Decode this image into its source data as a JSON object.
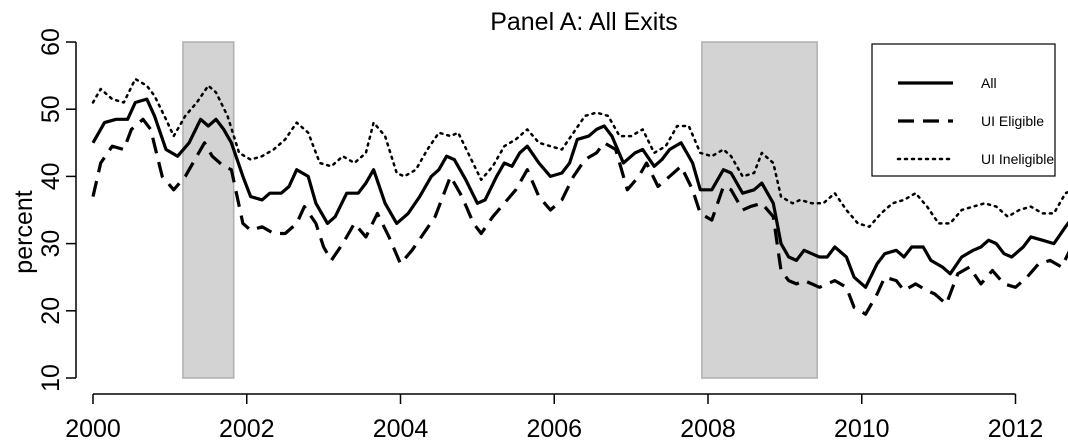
{
  "chart_data": {
    "type": "line",
    "title": "Panel A:  All Exits",
    "xlabel": "",
    "ylabel": "percent",
    "xlim": [
      2000,
      2012.85
    ],
    "ylim": [
      10,
      60
    ],
    "x_ticks": [
      2000,
      2002,
      2004,
      2006,
      2008,
      2010,
      2012
    ],
    "y_ticks": [
      10,
      20,
      30,
      40,
      50,
      60
    ],
    "grid": false,
    "legend_position": "top-right",
    "recession_bands": [
      {
        "start": 2001.17,
        "end": 2001.83
      },
      {
        "start": 2007.92,
        "end": 2009.42
      }
    ],
    "series": [
      {
        "name": "All",
        "style": "solid",
        "color": "#000000",
        "points": [
          [
            2000.0,
            45.0
          ],
          [
            2000.15,
            48.0
          ],
          [
            2000.3,
            48.5
          ],
          [
            2000.45,
            48.5
          ],
          [
            2000.55,
            51.0
          ],
          [
            2000.7,
            51.5
          ],
          [
            2000.8,
            49.0
          ],
          [
            2000.95,
            44.0
          ],
          [
            2001.1,
            43.0
          ],
          [
            2001.25,
            45.0
          ],
          [
            2001.4,
            48.5
          ],
          [
            2001.5,
            47.5
          ],
          [
            2001.6,
            48.5
          ],
          [
            2001.7,
            47.0
          ],
          [
            2001.8,
            45.0
          ],
          [
            2001.95,
            40.0
          ],
          [
            2002.05,
            37.0
          ],
          [
            2002.2,
            36.5
          ],
          [
            2002.3,
            37.5
          ],
          [
            2002.45,
            37.5
          ],
          [
            2002.55,
            38.5
          ],
          [
            2002.65,
            41.0
          ],
          [
            2002.8,
            40.0
          ],
          [
            2002.9,
            36.0
          ],
          [
            2003.05,
            33.0
          ],
          [
            2003.15,
            34.0
          ],
          [
            2003.3,
            37.5
          ],
          [
            2003.45,
            37.5
          ],
          [
            2003.55,
            39.0
          ],
          [
            2003.65,
            41.0
          ],
          [
            2003.8,
            36.0
          ],
          [
            2003.95,
            33.0
          ],
          [
            2004.1,
            34.5
          ],
          [
            2004.25,
            37.0
          ],
          [
            2004.4,
            40.0
          ],
          [
            2004.5,
            41.0
          ],
          [
            2004.6,
            43.0
          ],
          [
            2004.7,
            42.5
          ],
          [
            2004.85,
            39.5
          ],
          [
            2005.0,
            36.0
          ],
          [
            2005.1,
            36.5
          ],
          [
            2005.25,
            40.0
          ],
          [
            2005.35,
            42.0
          ],
          [
            2005.45,
            41.5
          ],
          [
            2005.55,
            43.5
          ],
          [
            2005.65,
            44.5
          ],
          [
            2005.8,
            42.0
          ],
          [
            2005.95,
            40.0
          ],
          [
            2006.1,
            40.5
          ],
          [
            2006.2,
            42.0
          ],
          [
            2006.3,
            45.5
          ],
          [
            2006.45,
            46.0
          ],
          [
            2006.55,
            47.0
          ],
          [
            2006.65,
            47.5
          ],
          [
            2006.75,
            46.0
          ],
          [
            2006.9,
            42.0
          ],
          [
            2007.05,
            43.5
          ],
          [
            2007.15,
            44.0
          ],
          [
            2007.3,
            41.5
          ],
          [
            2007.4,
            42.5
          ],
          [
            2007.5,
            44.0
          ],
          [
            2007.65,
            45.0
          ],
          [
            2007.8,
            42.0
          ],
          [
            2007.9,
            38.0
          ],
          [
            2008.05,
            38.0
          ],
          [
            2008.2,
            41.0
          ],
          [
            2008.3,
            40.5
          ],
          [
            2008.45,
            37.5
          ],
          [
            2008.6,
            38.0
          ],
          [
            2008.7,
            39.0
          ],
          [
            2008.85,
            36.0
          ],
          [
            2008.95,
            30.0
          ],
          [
            2009.05,
            28.0
          ],
          [
            2009.15,
            27.5
          ],
          [
            2009.25,
            29.0
          ],
          [
            2009.35,
            28.5
          ],
          [
            2009.45,
            28.0
          ],
          [
            2009.55,
            28.0
          ],
          [
            2009.65,
            29.5
          ],
          [
            2009.8,
            28.0
          ],
          [
            2009.9,
            25.0
          ],
          [
            2010.05,
            23.5
          ],
          [
            2010.2,
            27.0
          ],
          [
            2010.3,
            28.5
          ],
          [
            2010.45,
            29.0
          ],
          [
            2010.55,
            28.0
          ],
          [
            2010.65,
            29.5
          ],
          [
            2010.8,
            29.5
          ],
          [
            2010.9,
            27.5
          ],
          [
            2011.05,
            26.5
          ],
          [
            2011.15,
            25.5
          ],
          [
            2011.3,
            28.0
          ],
          [
            2011.45,
            29.0
          ],
          [
            2011.55,
            29.5
          ],
          [
            2011.65,
            30.5
          ],
          [
            2011.75,
            30.0
          ],
          [
            2011.85,
            28.5
          ],
          [
            2011.95,
            28.0
          ],
          [
            2012.1,
            29.5
          ],
          [
            2012.2,
            31.0
          ],
          [
            2012.35,
            30.5
          ],
          [
            2012.5,
            30.0
          ],
          [
            2012.65,
            32.5
          ],
          [
            2012.75,
            34.0
          ],
          [
            2012.85,
            31.0
          ]
        ]
      },
      {
        "name": "UI Eligible",
        "style": "dashed",
        "color": "#000000",
        "points": [
          [
            2000.0,
            37.0
          ],
          [
            2000.1,
            42.0
          ],
          [
            2000.25,
            44.5
          ],
          [
            2000.4,
            44.0
          ],
          [
            2000.5,
            47.0
          ],
          [
            2000.65,
            48.5
          ],
          [
            2000.75,
            47.0
          ],
          [
            2000.9,
            40.0
          ],
          [
            2001.05,
            38.0
          ],
          [
            2001.2,
            40.0
          ],
          [
            2001.35,
            43.0
          ],
          [
            2001.45,
            45.0
          ],
          [
            2001.55,
            43.0
          ],
          [
            2001.7,
            41.5
          ],
          [
            2001.8,
            41.0
          ],
          [
            2001.95,
            33.0
          ],
          [
            2002.05,
            32.0
          ],
          [
            2002.2,
            32.5
          ],
          [
            2002.35,
            31.5
          ],
          [
            2002.5,
            31.5
          ],
          [
            2002.65,
            33.0
          ],
          [
            2002.75,
            35.5
          ],
          [
            2002.9,
            33.0
          ],
          [
            2003.0,
            29.5
          ],
          [
            2003.1,
            27.5
          ],
          [
            2003.25,
            30.0
          ],
          [
            2003.4,
            33.0
          ],
          [
            2003.55,
            31.0
          ],
          [
            2003.7,
            34.5
          ],
          [
            2003.85,
            31.0
          ],
          [
            2004.0,
            27.0
          ],
          [
            2004.15,
            29.0
          ],
          [
            2004.3,
            31.5
          ],
          [
            2004.45,
            34.0
          ],
          [
            2004.55,
            37.0
          ],
          [
            2004.65,
            40.0
          ],
          [
            2004.8,
            37.0
          ],
          [
            2004.95,
            33.0
          ],
          [
            2005.05,
            31.5
          ],
          [
            2005.2,
            34.0
          ],
          [
            2005.35,
            36.0
          ],
          [
            2005.5,
            38.0
          ],
          [
            2005.65,
            41.0
          ],
          [
            2005.8,
            37.0
          ],
          [
            2005.95,
            35.0
          ],
          [
            2006.1,
            36.5
          ],
          [
            2006.25,
            40.0
          ],
          [
            2006.4,
            42.5
          ],
          [
            2006.55,
            43.5
          ],
          [
            2006.65,
            45.0
          ],
          [
            2006.8,
            44.0
          ],
          [
            2006.95,
            38.0
          ],
          [
            2007.1,
            40.0
          ],
          [
            2007.2,
            42.0
          ],
          [
            2007.35,
            38.5
          ],
          [
            2007.5,
            40.0
          ],
          [
            2007.65,
            41.5
          ],
          [
            2007.8,
            38.0
          ],
          [
            2007.9,
            34.5
          ],
          [
            2008.05,
            33.5
          ],
          [
            2008.2,
            38.5
          ],
          [
            2008.3,
            38.0
          ],
          [
            2008.45,
            35.0
          ],
          [
            2008.55,
            35.5
          ],
          [
            2008.7,
            36.0
          ],
          [
            2008.85,
            34.0
          ],
          [
            2008.95,
            26.0
          ],
          [
            2009.05,
            24.5
          ],
          [
            2009.15,
            24.0
          ],
          [
            2009.25,
            24.5
          ],
          [
            2009.35,
            24.0
          ],
          [
            2009.45,
            23.5
          ],
          [
            2009.55,
            24.0
          ],
          [
            2009.65,
            24.5
          ],
          [
            2009.8,
            23.5
          ],
          [
            2009.9,
            20.5
          ],
          [
            2010.05,
            19.5
          ],
          [
            2010.2,
            22.5
          ],
          [
            2010.3,
            25.0
          ],
          [
            2010.45,
            24.5
          ],
          [
            2010.55,
            23.0
          ],
          [
            2010.7,
            24.0
          ],
          [
            2010.85,
            23.0
          ],
          [
            2010.95,
            22.5
          ],
          [
            2011.1,
            21.0
          ],
          [
            2011.25,
            25.5
          ],
          [
            2011.4,
            26.5
          ],
          [
            2011.55,
            24.0
          ],
          [
            2011.7,
            26.0
          ],
          [
            2011.85,
            24.0
          ],
          [
            2012.0,
            23.5
          ],
          [
            2012.15,
            25.0
          ],
          [
            2012.3,
            27.0
          ],
          [
            2012.45,
            27.5
          ],
          [
            2012.6,
            26.5
          ],
          [
            2012.75,
            30.0
          ],
          [
            2012.85,
            29.0
          ]
        ]
      },
      {
        "name": "UI Ineligible",
        "style": "dotted",
        "color": "#000000",
        "points": [
          [
            2000.0,
            51.0
          ],
          [
            2000.1,
            53.0
          ],
          [
            2000.25,
            51.5
          ],
          [
            2000.4,
            51.0
          ],
          [
            2000.55,
            54.5
          ],
          [
            2000.7,
            53.5
          ],
          [
            2000.8,
            52.0
          ],
          [
            2000.95,
            48.5
          ],
          [
            2001.05,
            46.0
          ],
          [
            2001.2,
            49.0
          ],
          [
            2001.35,
            51.0
          ],
          [
            2001.5,
            53.5
          ],
          [
            2001.6,
            52.5
          ],
          [
            2001.75,
            49.0
          ],
          [
            2001.9,
            43.5
          ],
          [
            2002.05,
            42.5
          ],
          [
            2002.2,
            43.0
          ],
          [
            2002.35,
            44.0
          ],
          [
            2002.5,
            45.5
          ],
          [
            2002.65,
            48.0
          ],
          [
            2002.8,
            46.5
          ],
          [
            2002.95,
            42.0
          ],
          [
            2003.1,
            41.5
          ],
          [
            2003.25,
            43.0
          ],
          [
            2003.4,
            42.0
          ],
          [
            2003.55,
            43.5
          ],
          [
            2003.65,
            48.0
          ],
          [
            2003.8,
            46.0
          ],
          [
            2003.95,
            40.5
          ],
          [
            2004.05,
            40.0
          ],
          [
            2004.2,
            41.0
          ],
          [
            2004.35,
            44.0
          ],
          [
            2004.5,
            46.5
          ],
          [
            2004.65,
            46.0
          ],
          [
            2004.75,
            46.5
          ],
          [
            2004.9,
            43.0
          ],
          [
            2005.05,
            39.5
          ],
          [
            2005.2,
            41.5
          ],
          [
            2005.35,
            44.5
          ],
          [
            2005.5,
            45.5
          ],
          [
            2005.65,
            47.0
          ],
          [
            2005.8,
            45.0
          ],
          [
            2005.95,
            44.5
          ],
          [
            2006.1,
            44.0
          ],
          [
            2006.25,
            46.5
          ],
          [
            2006.4,
            49.0
          ],
          [
            2006.55,
            49.5
          ],
          [
            2006.7,
            49.0
          ],
          [
            2006.85,
            46.0
          ],
          [
            2007.0,
            46.0
          ],
          [
            2007.15,
            47.0
          ],
          [
            2007.3,
            43.5
          ],
          [
            2007.45,
            44.5
          ],
          [
            2007.6,
            47.5
          ],
          [
            2007.75,
            47.5
          ],
          [
            2007.9,
            43.5
          ],
          [
            2008.05,
            43.0
          ],
          [
            2008.2,
            44.0
          ],
          [
            2008.3,
            43.0
          ],
          [
            2008.45,
            40.0
          ],
          [
            2008.6,
            40.5
          ],
          [
            2008.7,
            43.5
          ],
          [
            2008.85,
            42.0
          ],
          [
            2008.95,
            37.0
          ],
          [
            2009.1,
            36.0
          ],
          [
            2009.2,
            36.5
          ],
          [
            2009.35,
            36.0
          ],
          [
            2009.5,
            36.0
          ],
          [
            2009.65,
            37.5
          ],
          [
            2009.8,
            35.0
          ],
          [
            2009.95,
            33.0
          ],
          [
            2010.1,
            32.5
          ],
          [
            2010.25,
            34.5
          ],
          [
            2010.4,
            36.0
          ],
          [
            2010.55,
            36.5
          ],
          [
            2010.7,
            37.5
          ],
          [
            2010.85,
            35.5
          ],
          [
            2011.0,
            33.0
          ],
          [
            2011.15,
            33.0
          ],
          [
            2011.3,
            35.0
          ],
          [
            2011.45,
            35.5
          ],
          [
            2011.6,
            36.0
          ],
          [
            2011.75,
            35.5
          ],
          [
            2011.9,
            34.0
          ],
          [
            2012.05,
            35.0
          ],
          [
            2012.2,
            35.5
          ],
          [
            2012.35,
            34.5
          ],
          [
            2012.5,
            34.5
          ],
          [
            2012.65,
            37.5
          ],
          [
            2012.75,
            38.0
          ],
          [
            2012.85,
            35.5
          ]
        ]
      }
    ]
  }
}
